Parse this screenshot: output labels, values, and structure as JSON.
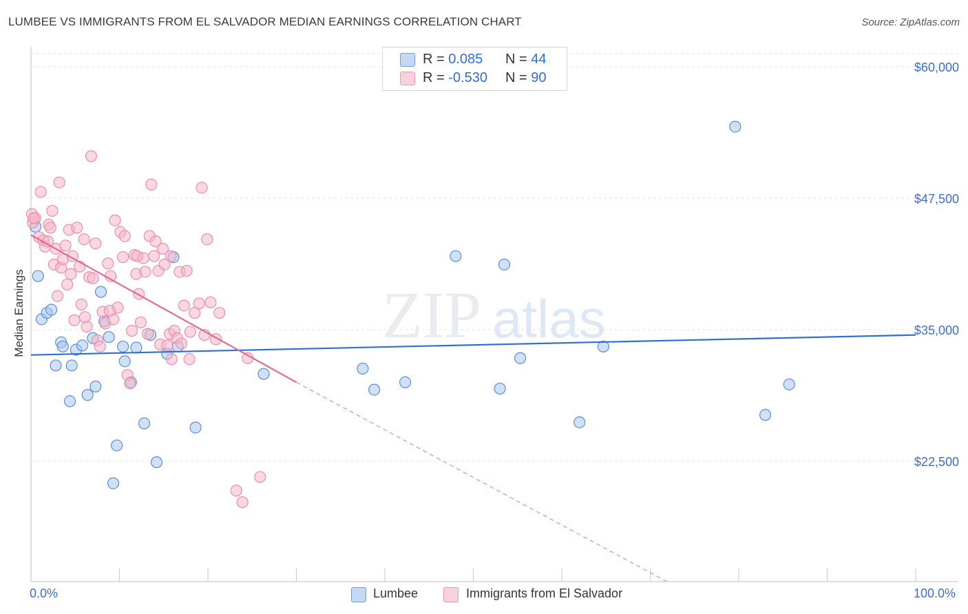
{
  "header": {
    "title": "LUMBEE VS IMMIGRANTS FROM EL SALVADOR MEDIAN EARNINGS CORRELATION CHART",
    "source": "Source: ZipAtlas.com"
  },
  "watermark": {
    "part1": "ZIP",
    "part2": "atlas"
  },
  "legend_top": {
    "rows": [
      {
        "r_label": "R = ",
        "r_value": "0.085",
        "n_label": "N = ",
        "n_value": "44",
        "color": "#a8c6f0"
      },
      {
        "r_label": "R = ",
        "r_value": "-0.530",
        "n_label": "N = ",
        "n_value": "90",
        "color": "#f5b6c8"
      }
    ]
  },
  "legend_bottom": {
    "items": [
      {
        "label": "Lumbee",
        "color": "#a8c6f0"
      },
      {
        "label": "Immigrants from El Salvador",
        "color": "#f5b6c8"
      }
    ]
  },
  "chart_data": {
    "type": "scatter",
    "title": "LUMBEE VS IMMIGRANTS FROM EL SALVADOR MEDIAN EARNINGS CORRELATION CHART",
    "xlabel": "",
    "ylabel": "Median Earnings",
    "xlim": [
      0,
      100
    ],
    "ylim": [
      12500,
      63000
    ],
    "x_tick_labels": [
      "0.0%",
      "100.0%"
    ],
    "y_ticks": [
      {
        "value": 22500,
        "label": "$22,500"
      },
      {
        "value": 35000,
        "label": "$35,000"
      },
      {
        "value": 47500,
        "label": "$47,500"
      },
      {
        "value": 60000,
        "label": "$60,000"
      }
    ],
    "grid": "dashed horizontal",
    "series": [
      {
        "name": "Lumbee",
        "color": "#5b8fd6",
        "fill": "#a8c6f0",
        "R": 0.085,
        "N": 44,
        "trend": {
          "x": [
            0,
            100
          ],
          "y": [
            32600,
            34500
          ],
          "style": "solid",
          "color": "#2e6fd1"
        },
        "points": [
          [
            0.5,
            44800
          ],
          [
            0.8,
            40100
          ],
          [
            1.2,
            36000
          ],
          [
            1.8,
            36600
          ],
          [
            2.3,
            36900
          ],
          [
            2.8,
            31600
          ],
          [
            3.4,
            33800
          ],
          [
            3.6,
            33400
          ],
          [
            4.4,
            28200
          ],
          [
            4.6,
            31600
          ],
          [
            5.1,
            33100
          ],
          [
            5.8,
            33500
          ],
          [
            6.4,
            28800
          ],
          [
            7.0,
            34200
          ],
          [
            7.3,
            29600
          ],
          [
            7.9,
            38600
          ],
          [
            8.3,
            35800
          ],
          [
            8.8,
            34300
          ],
          [
            9.3,
            20400
          ],
          [
            9.7,
            24000
          ],
          [
            10.4,
            33400
          ],
          [
            10.6,
            32000
          ],
          [
            11.3,
            30000
          ],
          [
            11.9,
            33300
          ],
          [
            12.8,
            26100
          ],
          [
            13.5,
            34500
          ],
          [
            14.2,
            22400
          ],
          [
            15.4,
            32700
          ],
          [
            16.1,
            41900
          ],
          [
            16.6,
            33400
          ],
          [
            18.6,
            25700
          ],
          [
            26.3,
            30800
          ],
          [
            37.5,
            31300
          ],
          [
            38.8,
            29300
          ],
          [
            42.3,
            30000
          ],
          [
            48.0,
            42000
          ],
          [
            53.0,
            29400
          ],
          [
            53.5,
            41200
          ],
          [
            55.3,
            32300
          ],
          [
            62.0,
            26200
          ],
          [
            64.7,
            33400
          ],
          [
            79.6,
            54300
          ],
          [
            83.0,
            26900
          ],
          [
            85.7,
            29800
          ]
        ]
      },
      {
        "name": "Immigrants from El Salvador",
        "color": "#ea8fab",
        "fill": "#f5b6c8",
        "R": -0.53,
        "N": 90,
        "trend": {
          "x": [
            0,
            30
          ],
          "y": [
            44000,
            30000
          ],
          "style": "solid",
          "color": "#e06b94",
          "extension": {
            "x": [
              30,
              72
            ],
            "y": [
              30000,
              11000
            ],
            "style": "dashed"
          }
        },
        "points": [
          [
            0.1,
            46000
          ],
          [
            0.2,
            45200
          ],
          [
            0.5,
            45600
          ],
          [
            0.9,
            43800
          ],
          [
            1.1,
            48100
          ],
          [
            1.4,
            43500
          ],
          [
            1.6,
            42900
          ],
          [
            2.0,
            45000
          ],
          [
            2.2,
            44700
          ],
          [
            2.4,
            46300
          ],
          [
            2.6,
            41200
          ],
          [
            2.8,
            42700
          ],
          [
            3.0,
            38200
          ],
          [
            3.2,
            49000
          ],
          [
            3.4,
            40900
          ],
          [
            3.6,
            41700
          ],
          [
            3.9,
            43000
          ],
          [
            4.1,
            39300
          ],
          [
            4.3,
            44500
          ],
          [
            4.5,
            40300
          ],
          [
            4.7,
            42000
          ],
          [
            4.9,
            35900
          ],
          [
            5.2,
            44700
          ],
          [
            5.5,
            41000
          ],
          [
            5.7,
            37400
          ],
          [
            6.0,
            43600
          ],
          [
            6.3,
            35300
          ],
          [
            6.6,
            40000
          ],
          [
            6.8,
            51500
          ],
          [
            7.0,
            39900
          ],
          [
            7.3,
            43200
          ],
          [
            7.5,
            34000
          ],
          [
            7.8,
            33400
          ],
          [
            8.1,
            36700
          ],
          [
            8.4,
            35600
          ],
          [
            8.7,
            41300
          ],
          [
            9.0,
            40100
          ],
          [
            9.3,
            36000
          ],
          [
            9.5,
            45400
          ],
          [
            9.8,
            37100
          ],
          [
            10.1,
            44300
          ],
          [
            10.4,
            41900
          ],
          [
            10.6,
            43900
          ],
          [
            10.9,
            30700
          ],
          [
            11.2,
            29900
          ],
          [
            11.4,
            34900
          ],
          [
            11.7,
            42100
          ],
          [
            11.9,
            40300
          ],
          [
            12.2,
            38400
          ],
          [
            12.4,
            35700
          ],
          [
            12.7,
            41800
          ],
          [
            12.9,
            40500
          ],
          [
            13.2,
            34600
          ],
          [
            13.4,
            43900
          ],
          [
            13.6,
            48800
          ],
          [
            13.9,
            42000
          ],
          [
            14.1,
            43400
          ],
          [
            14.4,
            40600
          ],
          [
            14.6,
            33600
          ],
          [
            14.9,
            42700
          ],
          [
            15.1,
            41200
          ],
          [
            15.4,
            33500
          ],
          [
            15.7,
            34600
          ],
          [
            15.9,
            32200
          ],
          [
            16.2,
            34900
          ],
          [
            16.5,
            34200
          ],
          [
            16.8,
            40500
          ],
          [
            17.0,
            33700
          ],
          [
            17.3,
            37300
          ],
          [
            17.6,
            40600
          ],
          [
            17.9,
            32200
          ],
          [
            18.5,
            36600
          ],
          [
            19.0,
            37500
          ],
          [
            19.3,
            48500
          ],
          [
            19.6,
            34500
          ],
          [
            19.9,
            43600
          ],
          [
            20.3,
            37600
          ],
          [
            20.9,
            34100
          ],
          [
            21.3,
            36600
          ],
          [
            23.2,
            19700
          ],
          [
            23.9,
            18600
          ],
          [
            24.5,
            32300
          ],
          [
            25.9,
            21000
          ],
          [
            0.3,
            45600
          ],
          [
            1.9,
            43400
          ],
          [
            6.1,
            36200
          ],
          [
            8.9,
            36800
          ],
          [
            12.0,
            42000
          ],
          [
            15.8,
            42000
          ],
          [
            18.0,
            34800
          ]
        ]
      }
    ]
  }
}
